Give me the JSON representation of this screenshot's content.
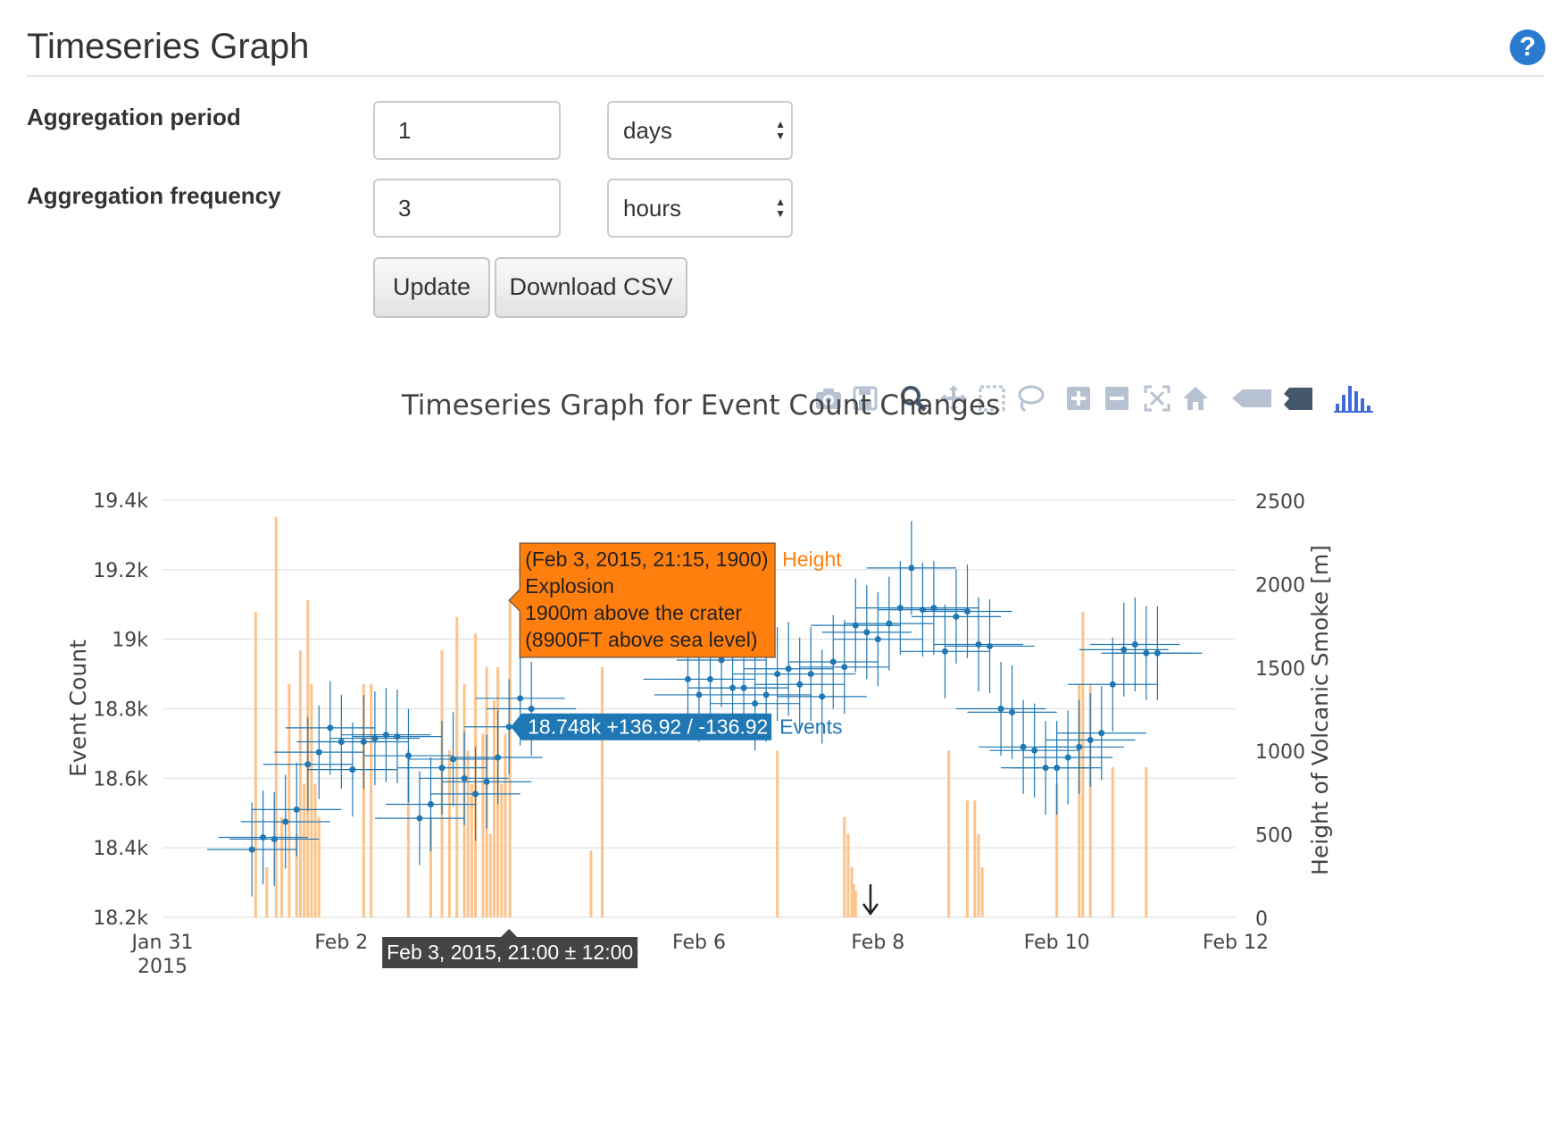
{
  "header": {
    "title": "Timeseries Graph",
    "help_icon": "question-circle-icon",
    "help_glyph": "?"
  },
  "form": {
    "period_label": "Aggregation period",
    "period_value": "1",
    "period_unit": "days",
    "frequency_label": "Aggregation frequency",
    "frequency_value": "3",
    "frequency_unit": "hours",
    "update_label": "Update",
    "download_label": "Download CSV"
  },
  "modebar": [
    "camera-icon",
    "save-icon",
    "zoom-icon",
    "pan-icon",
    "box-select-icon",
    "lasso-icon",
    "zoom-in-icon",
    "zoom-out-icon",
    "autoscale-icon",
    "reset-axes-icon",
    "hover-closest-icon",
    "hover-compare-icon",
    "plotly-logo-icon"
  ],
  "chart_data": {
    "type": "scatter",
    "title": "Timeseries Graph for Event Count Changes",
    "ylabel": "Event Count",
    "y2label": "Height of Volcanic Smoke [m]",
    "ylim": [
      18200,
      19400
    ],
    "y2lim": [
      0,
      2500
    ],
    "xlim": [
      "2015-01-31",
      "2015-02-12"
    ],
    "x_ticks": [
      {
        "date": "2015-01-31",
        "label": "Jan 31",
        "label2": "2015"
      },
      {
        "date": "2015-02-02",
        "label": "Feb 2"
      },
      {
        "date": "2015-02-04",
        "label": ""
      },
      {
        "date": "2015-02-06",
        "label": "Feb 6"
      },
      {
        "date": "2015-02-08",
        "label": "Feb 8"
      },
      {
        "date": "2015-02-10",
        "label": "Feb 10"
      },
      {
        "date": "2015-02-12",
        "label": "Feb 12"
      }
    ],
    "y_ticks": [
      {
        "value": 18200,
        "label": "18.2k"
      },
      {
        "value": 18400,
        "label": "18.4k"
      },
      {
        "value": 18600,
        "label": "18.6k"
      },
      {
        "value": 18800,
        "label": "18.8k"
      },
      {
        "value": 19000,
        "label": "19k"
      },
      {
        "value": 19200,
        "label": "19.2k"
      },
      {
        "value": 19400,
        "label": "19.4k"
      }
    ],
    "y2_ticks": [
      {
        "value": 0,
        "label": "0"
      },
      {
        "value": 500,
        "label": "500"
      },
      {
        "value": 1000,
        "label": "1000"
      },
      {
        "value": 1500,
        "label": "1500"
      },
      {
        "value": 2000,
        "label": "2000"
      },
      {
        "value": 2500,
        "label": "2500"
      }
    ],
    "colors": {
      "events": "#1f77b4",
      "height": "#ff7f0e",
      "height_bar": "#fdc38a",
      "grid": "#e6e6e6"
    },
    "events_series": {
      "name": "Events",
      "x_error": "± 12:00",
      "points": [
        [
          "2015-02-01T00:00",
          18395,
          135
        ],
        [
          "2015-02-01T03:00",
          18430,
          135
        ],
        [
          "2015-02-01T06:00",
          18425,
          135
        ],
        [
          "2015-02-01T09:00",
          18475,
          135
        ],
        [
          "2015-02-01T12:00",
          18510,
          135
        ],
        [
          "2015-02-01T15:00",
          18640,
          135
        ],
        [
          "2015-02-01T18:00",
          18675,
          135
        ],
        [
          "2015-02-01T21:00",
          18745,
          135
        ],
        [
          "2015-02-02T00:00",
          18705,
          135
        ],
        [
          "2015-02-02T03:00",
          18625,
          135
        ],
        [
          "2015-02-02T06:00",
          18705,
          135
        ],
        [
          "2015-02-02T09:00",
          18715,
          135
        ],
        [
          "2015-02-02T12:00",
          18725,
          135
        ],
        [
          "2015-02-02T15:00",
          18720,
          135
        ],
        [
          "2015-02-02T18:00",
          18665,
          135
        ],
        [
          "2015-02-02T21:00",
          18485,
          135
        ],
        [
          "2015-02-03T00:00",
          18525,
          135
        ],
        [
          "2015-02-03T03:00",
          18630,
          135
        ],
        [
          "2015-02-03T06:00",
          18655,
          135
        ],
        [
          "2015-02-03T09:00",
          18600,
          135
        ],
        [
          "2015-02-03T12:00",
          18555,
          135
        ],
        [
          "2015-02-03T15:00",
          18590,
          135
        ],
        [
          "2015-02-03T18:00",
          18660,
          135
        ],
        [
          "2015-02-03T21:00",
          18748,
          136.92
        ],
        [
          "2015-02-04T00:00",
          18830,
          135
        ],
        [
          "2015-02-04T03:00",
          18800,
          135
        ],
        [
          "2015-02-05T21:00",
          18885,
          135
        ],
        [
          "2015-02-06T00:00",
          18840,
          135
        ],
        [
          "2015-02-06T03:00",
          18885,
          135
        ],
        [
          "2015-02-06T06:00",
          18940,
          135
        ],
        [
          "2015-02-06T09:00",
          18860,
          135
        ],
        [
          "2015-02-06T12:00",
          18860,
          135
        ],
        [
          "2015-02-06T15:00",
          18815,
          135
        ],
        [
          "2015-02-06T18:00",
          18840,
          135
        ],
        [
          "2015-02-06T21:00",
          18900,
          135
        ],
        [
          "2015-02-07T00:00",
          18915,
          135
        ],
        [
          "2015-02-07T03:00",
          18870,
          135
        ],
        [
          "2015-02-07T06:00",
          18900,
          135
        ],
        [
          "2015-02-07T09:00",
          18835,
          135
        ],
        [
          "2015-02-07T12:00",
          18935,
          135
        ],
        [
          "2015-02-07T15:00",
          18920,
          135
        ],
        [
          "2015-02-07T18:00",
          19040,
          135
        ],
        [
          "2015-02-07T21:00",
          19020,
          135
        ],
        [
          "2015-02-08T00:00",
          19000,
          135
        ],
        [
          "2015-02-08T03:00",
          19045,
          135
        ],
        [
          "2015-02-08T06:00",
          19090,
          135
        ],
        [
          "2015-02-08T09:00",
          19205,
          135
        ],
        [
          "2015-02-08T12:00",
          19085,
          135
        ],
        [
          "2015-02-08T15:00",
          19090,
          135
        ],
        [
          "2015-02-08T18:00",
          18965,
          135
        ],
        [
          "2015-02-08T21:00",
          19065,
          135
        ],
        [
          "2015-02-09T00:00",
          19080,
          135
        ],
        [
          "2015-02-09T03:00",
          18985,
          135
        ],
        [
          "2015-02-09T06:00",
          18980,
          135
        ],
        [
          "2015-02-09T09:00",
          18800,
          135
        ],
        [
          "2015-02-09T12:00",
          18790,
          135
        ],
        [
          "2015-02-09T15:00",
          18690,
          135
        ],
        [
          "2015-02-09T18:00",
          18680,
          135
        ],
        [
          "2015-02-09T21:00",
          18630,
          135
        ],
        [
          "2015-02-10T00:00",
          18630,
          135
        ],
        [
          "2015-02-10T03:00",
          18660,
          135
        ],
        [
          "2015-02-10T06:00",
          18690,
          135
        ],
        [
          "2015-02-10T09:00",
          18710,
          135
        ],
        [
          "2015-02-10T12:00",
          18730,
          135
        ],
        [
          "2015-02-10T15:00",
          18870,
          135
        ],
        [
          "2015-02-10T18:00",
          18970,
          135
        ],
        [
          "2015-02-10T21:00",
          18985,
          135
        ],
        [
          "2015-02-11T00:00",
          18960,
          135
        ],
        [
          "2015-02-11T03:00",
          18960,
          135
        ]
      ]
    },
    "height_series": {
      "name": "Height",
      "bars": [
        [
          "2015-02-01T01:00",
          1830
        ],
        [
          "2015-02-01T04:00",
          300
        ],
        [
          "2015-02-01T06:30",
          2400
        ],
        [
          "2015-02-01T08:00",
          600
        ],
        [
          "2015-02-01T10:00",
          1400
        ],
        [
          "2015-02-01T12:00",
          500
        ],
        [
          "2015-02-01T13:00",
          1600
        ],
        [
          "2015-02-01T14:00",
          800
        ],
        [
          "2015-02-01T15:00",
          1900
        ],
        [
          "2015-02-01T16:00",
          1400
        ],
        [
          "2015-02-01T17:00",
          800
        ],
        [
          "2015-02-01T18:00",
          600
        ],
        [
          "2015-02-02T06:00",
          1400
        ],
        [
          "2015-02-02T08:00",
          1400
        ],
        [
          "2015-02-02T18:00",
          1000
        ],
        [
          "2015-02-03T00:00",
          600
        ],
        [
          "2015-02-03T03:00",
          1600
        ],
        [
          "2015-02-03T05:00",
          1000
        ],
        [
          "2015-02-03T07:00",
          1800
        ],
        [
          "2015-02-03T09:00",
          1400
        ],
        [
          "2015-02-03T10:00",
          1000
        ],
        [
          "2015-02-03T11:00",
          800
        ],
        [
          "2015-02-03T12:00",
          1700
        ],
        [
          "2015-02-03T14:00",
          1100
        ],
        [
          "2015-02-03T15:00",
          1500
        ],
        [
          "2015-02-03T16:00",
          500
        ],
        [
          "2015-02-03T17:00",
          1300
        ],
        [
          "2015-02-03T18:00",
          1500
        ],
        [
          "2015-02-03T19:00",
          800
        ],
        [
          "2015-02-03T20:00",
          1100
        ],
        [
          "2015-02-03T21:15",
          1900
        ],
        [
          "2015-02-04T19:00",
          400
        ],
        [
          "2015-02-04T22:00",
          1500
        ],
        [
          "2015-02-06T21:00",
          1000
        ],
        [
          "2015-02-07T15:00",
          600
        ],
        [
          "2015-02-07T16:00",
          500
        ],
        [
          "2015-02-07T17:00",
          300
        ],
        [
          "2015-02-07T17:30",
          200
        ],
        [
          "2015-02-07T18:00",
          160
        ],
        [
          "2015-02-08T19:00",
          1000
        ],
        [
          "2015-02-09T00:00",
          700
        ],
        [
          "2015-02-09T02:00",
          700
        ],
        [
          "2015-02-09T03:00",
          500
        ],
        [
          "2015-02-09T04:00",
          300
        ],
        [
          "2015-02-10T00:00",
          800
        ],
        [
          "2015-02-10T06:00",
          1400
        ],
        [
          "2015-02-10T07:00",
          1830
        ],
        [
          "2015-02-10T09:00",
          1400
        ],
        [
          "2015-02-10T15:00",
          900
        ],
        [
          "2015-02-11T00:00",
          900
        ]
      ]
    },
    "hover": {
      "height_tip_title": "(Feb 3, 2015, 21:15, 1900)",
      "height_tip_lines": [
        "Explosion",
        "1900m above the crater",
        "(8900FT above sea level)"
      ],
      "height_tip_series": "Height",
      "events_tip_text": "18.748k +136.92 / -136.92",
      "events_tip_series": "Events",
      "x_tip_text": "Feb 3, 2015, 21:00 ± 12:00",
      "spike_marker": "down-arrow-icon"
    }
  }
}
